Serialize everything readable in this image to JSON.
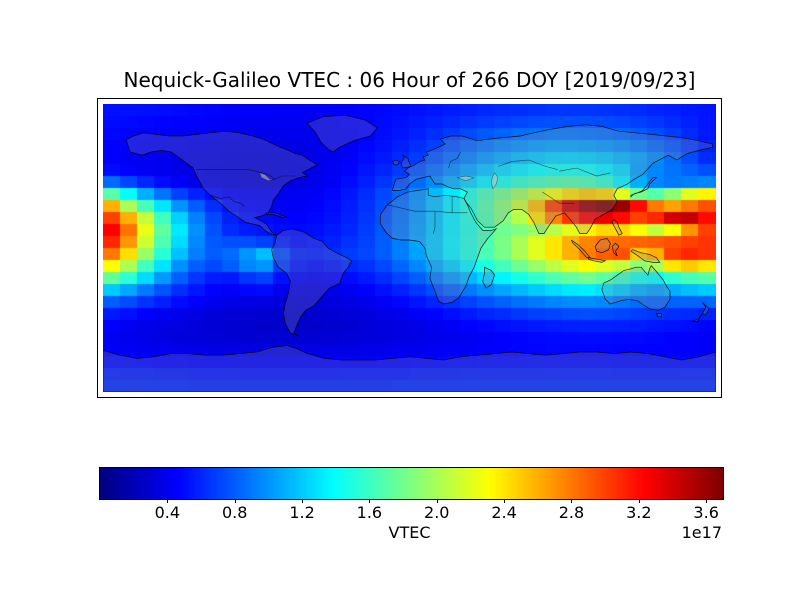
{
  "figure": {
    "background_color": "#ffffff",
    "title": "Nequick-Galileo VTEC : 06 Hour of 266 DOY [2019/09/23]"
  },
  "chart_data": {
    "type": "heatmap",
    "title": "Nequick-Galileo VTEC : 06 Hour of 266 DOY [2019/09/23]",
    "description_visible": "Global world map (equirectangular) of modeled vertical total electron content with coastlines and country borders overlaid",
    "colormap": "jet",
    "vmin": 0.0,
    "vmax": 3.7,
    "colorbar": {
      "orientation": "horizontal",
      "label": "VTEC",
      "offset_text": "1e17",
      "tick_labels": [
        "0.4",
        "0.8",
        "1.2",
        "1.6",
        "2.0",
        "2.4",
        "2.8",
        "3.2",
        "3.6"
      ],
      "tick_values": [
        0.4,
        0.8,
        1.2,
        1.6,
        2.0,
        2.4,
        2.8,
        3.2,
        3.6
      ]
    },
    "x_axis": {
      "name": "longitude",
      "range": [
        -180,
        180
      ],
      "cell_step_deg": 10,
      "ticks_visible": false
    },
    "y_axis": {
      "name": "latitude",
      "range": [
        90,
        -90
      ],
      "cell_step_deg": 7.5,
      "ticks_visible": false
    },
    "grid_units": "1e17 electrons/m^2",
    "grid_lat_centers_north_to_south": [
      86.25,
      78.75,
      71.25,
      63.75,
      56.25,
      48.75,
      41.25,
      33.75,
      26.25,
      18.75,
      11.25,
      3.75,
      -3.75,
      -11.25,
      -18.75,
      -26.25,
      -33.75,
      -41.25,
      -48.75,
      -56.25,
      -63.75,
      -71.25,
      -78.75,
      -86.25
    ],
    "grid_rows_north_to_south": [
      [
        0.52,
        0.52,
        0.51,
        0.5,
        0.49,
        0.48,
        0.47,
        0.46,
        0.45,
        0.45,
        0.44,
        0.44,
        0.44,
        0.45,
        0.46,
        0.47,
        0.48,
        0.5,
        0.52,
        0.54,
        0.56,
        0.58,
        0.6,
        0.62,
        0.63,
        0.64,
        0.65,
        0.65,
        0.65,
        0.64,
        0.63,
        0.61,
        0.59,
        0.57,
        0.55,
        0.53
      ],
      [
        0.5,
        0.49,
        0.48,
        0.47,
        0.46,
        0.45,
        0.44,
        0.43,
        0.42,
        0.42,
        0.42,
        0.42,
        0.43,
        0.44,
        0.45,
        0.47,
        0.49,
        0.52,
        0.55,
        0.58,
        0.61,
        0.64,
        0.67,
        0.7,
        0.72,
        0.74,
        0.75,
        0.75,
        0.75,
        0.74,
        0.72,
        0.69,
        0.66,
        0.62,
        0.58,
        0.54
      ],
      [
        0.48,
        0.47,
        0.46,
        0.44,
        0.43,
        0.42,
        0.41,
        0.4,
        0.39,
        0.39,
        0.39,
        0.4,
        0.41,
        0.42,
        0.44,
        0.47,
        0.5,
        0.54,
        0.58,
        0.63,
        0.68,
        0.73,
        0.78,
        0.82,
        0.86,
        0.88,
        0.9,
        0.9,
        0.89,
        0.87,
        0.84,
        0.8,
        0.75,
        0.69,
        0.62,
        0.55
      ],
      [
        0.46,
        0.45,
        0.44,
        0.42,
        0.4,
        0.39,
        0.38,
        0.37,
        0.36,
        0.36,
        0.36,
        0.37,
        0.39,
        0.41,
        0.44,
        0.48,
        0.52,
        0.57,
        0.63,
        0.7,
        0.77,
        0.84,
        0.9,
        0.96,
        1.0,
        1.04,
        1.06,
        1.06,
        1.05,
        1.02,
        0.98,
        0.92,
        0.85,
        0.77,
        0.68,
        0.58
      ],
      [
        0.45,
        0.44,
        0.42,
        0.4,
        0.38,
        0.37,
        0.36,
        0.35,
        0.34,
        0.34,
        0.34,
        0.36,
        0.38,
        0.41,
        0.45,
        0.5,
        0.55,
        0.61,
        0.68,
        0.77,
        0.86,
        0.94,
        1.02,
        1.09,
        1.15,
        1.2,
        1.23,
        1.24,
        1.22,
        1.19,
        1.13,
        1.06,
        0.97,
        0.86,
        0.74,
        0.62
      ],
      [
        0.5,
        0.46,
        0.43,
        0.4,
        0.38,
        0.36,
        0.35,
        0.34,
        0.33,
        0.33,
        0.34,
        0.35,
        0.38,
        0.42,
        0.47,
        0.53,
        0.59,
        0.67,
        0.76,
        0.86,
        0.97,
        1.07,
        1.17,
        1.26,
        1.33,
        1.39,
        1.43,
        1.44,
        1.42,
        1.35,
        1.25,
        1.05,
        0.95,
        0.88,
        0.82,
        0.75
      ],
      [
        0.85,
        0.72,
        0.6,
        0.5,
        0.43,
        0.38,
        0.36,
        0.34,
        0.33,
        0.33,
        0.34,
        0.36,
        0.39,
        0.44,
        0.5,
        0.57,
        0.65,
        0.74,
        0.85,
        0.97,
        1.1,
        1.22,
        1.34,
        1.45,
        1.55,
        1.62,
        1.67,
        1.69,
        1.65,
        1.55,
        1.35,
        1.1,
        0.95,
        0.9,
        0.92,
        0.95
      ],
      [
        1.7,
        1.4,
        1.1,
        0.88,
        0.7,
        0.58,
        0.5,
        0.45,
        0.44,
        0.43,
        0.42,
        0.42,
        0.44,
        0.48,
        0.54,
        0.62,
        0.72,
        0.84,
        0.98,
        1.14,
        1.31,
        1.48,
        1.64,
        1.8,
        1.96,
        2.12,
        2.28,
        2.42,
        2.5,
        2.45,
        2.2,
        1.8,
        1.7,
        1.9,
        2.2,
        2.35
      ],
      [
        2.6,
        2.0,
        1.65,
        1.3,
        1.0,
        0.8,
        0.63,
        0.52,
        0.47,
        0.45,
        0.44,
        0.44,
        0.46,
        0.5,
        0.56,
        0.64,
        0.74,
        0.86,
        1.0,
        1.16,
        1.33,
        1.5,
        1.68,
        1.88,
        2.1,
        2.55,
        3.0,
        3.4,
        3.62,
        3.7,
        3.6,
        3.2,
        2.8,
        2.65,
        2.8,
        2.95
      ],
      [
        3.0,
        2.6,
        2.1,
        1.62,
        1.22,
        0.93,
        0.72,
        0.58,
        0.52,
        0.49,
        0.47,
        0.46,
        0.48,
        0.52,
        0.58,
        0.66,
        0.76,
        0.88,
        1.02,
        1.17,
        1.33,
        1.5,
        1.67,
        1.85,
        2.05,
        2.4,
        2.75,
        3.05,
        3.25,
        3.3,
        3.2,
        3.0,
        3.1,
        3.4,
        3.45,
        3.2
      ],
      [
        3.25,
        2.82,
        2.24,
        1.74,
        1.31,
        0.99,
        0.76,
        0.62,
        0.56,
        0.53,
        0.5,
        0.49,
        0.51,
        0.55,
        0.6,
        0.68,
        0.78,
        0.9,
        1.04,
        1.18,
        1.33,
        1.48,
        1.64,
        1.78,
        1.85,
        1.95,
        2.05,
        2.2,
        2.35,
        2.45,
        2.45,
        2.3,
        2.1,
        2.3,
        2.7,
        3.0
      ],
      [
        3.1,
        2.69,
        2.14,
        1.67,
        1.26,
        0.96,
        0.78,
        0.75,
        0.75,
        0.7,
        0.58,
        0.52,
        0.54,
        0.58,
        0.64,
        0.7,
        0.8,
        0.92,
        1.06,
        1.2,
        1.35,
        1.5,
        1.66,
        1.83,
        2.0,
        2.2,
        2.4,
        2.6,
        2.75,
        2.82,
        2.85,
        2.88,
        2.9,
        2.95,
        3.0,
        3.05
      ],
      [
        2.8,
        2.43,
        1.94,
        1.53,
        1.16,
        0.92,
        0.8,
        0.85,
        1.0,
        1.15,
        0.75,
        0.6,
        0.58,
        0.62,
        0.68,
        0.72,
        0.8,
        0.92,
        1.05,
        1.19,
        1.34,
        1.49,
        1.65,
        1.82,
        2.0,
        2.2,
        2.4,
        2.6,
        2.78,
        2.9,
        2.95,
        2.5,
        2.6,
        3.0,
        3.1,
        3.05
      ],
      [
        2.3,
        2.01,
        1.62,
        1.29,
        0.99,
        0.8,
        0.72,
        0.8,
        0.95,
        1.0,
        0.68,
        0.55,
        0.52,
        0.55,
        0.6,
        0.64,
        0.72,
        0.83,
        0.95,
        1.08,
        1.21,
        1.35,
        1.49,
        1.63,
        1.78,
        1.93,
        2.07,
        2.2,
        2.3,
        2.2,
        2.1,
        1.9,
        2.0,
        2.4,
        2.5,
        2.4
      ],
      [
        1.75,
        1.54,
        1.26,
        1.02,
        0.81,
        0.66,
        0.56,
        0.55,
        0.65,
        0.7,
        0.52,
        0.45,
        0.44,
        0.46,
        0.5,
        0.55,
        0.62,
        0.71,
        0.81,
        0.91,
        1.02,
        1.13,
        1.24,
        1.35,
        1.46,
        1.56,
        1.66,
        1.74,
        1.8,
        1.72,
        1.6,
        1.45,
        1.4,
        1.55,
        1.65,
        1.7
      ],
      [
        1.2,
        1.07,
        0.9,
        0.76,
        0.63,
        0.54,
        0.47,
        0.44,
        0.48,
        0.5,
        0.4,
        0.36,
        0.36,
        0.38,
        0.42,
        0.46,
        0.52,
        0.58,
        0.66,
        0.74,
        0.82,
        0.9,
        0.98,
        1.06,
        1.13,
        1.2,
        1.26,
        1.31,
        1.33,
        1.28,
        1.2,
        1.1,
        1.05,
        1.1,
        1.15,
        1.2
      ],
      [
        0.8,
        0.73,
        0.64,
        0.57,
        0.5,
        0.45,
        0.41,
        0.38,
        0.37,
        0.36,
        0.33,
        0.31,
        0.32,
        0.34,
        0.36,
        0.39,
        0.43,
        0.48,
        0.53,
        0.59,
        0.64,
        0.7,
        0.76,
        0.81,
        0.86,
        0.9,
        0.94,
        0.97,
        0.98,
        0.95,
        0.9,
        0.85,
        0.82,
        0.82,
        0.82,
        0.82
      ],
      [
        0.55,
        0.51,
        0.46,
        0.42,
        0.39,
        0.36,
        0.33,
        0.31,
        0.3,
        0.29,
        0.28,
        0.28,
        0.29,
        0.3,
        0.32,
        0.34,
        0.37,
        0.4,
        0.44,
        0.47,
        0.51,
        0.55,
        0.59,
        0.62,
        0.66,
        0.69,
        0.71,
        0.73,
        0.74,
        0.73,
        0.71,
        0.68,
        0.65,
        0.63,
        0.61,
        0.58
      ],
      [
        0.45,
        0.42,
        0.39,
        0.37,
        0.35,
        0.33,
        0.31,
        0.3,
        0.29,
        0.28,
        0.28,
        0.28,
        0.28,
        0.29,
        0.3,
        0.32,
        0.34,
        0.36,
        0.38,
        0.41,
        0.43,
        0.46,
        0.48,
        0.51,
        0.53,
        0.55,
        0.56,
        0.57,
        0.58,
        0.58,
        0.57,
        0.56,
        0.54,
        0.52,
        0.5,
        0.47
      ],
      [
        0.42,
        0.4,
        0.38,
        0.36,
        0.34,
        0.33,
        0.32,
        0.31,
        0.3,
        0.3,
        0.3,
        0.3,
        0.3,
        0.31,
        0.32,
        0.33,
        0.34,
        0.36,
        0.37,
        0.39,
        0.41,
        0.42,
        0.44,
        0.45,
        0.47,
        0.48,
        0.49,
        0.49,
        0.5,
        0.5,
        0.49,
        0.49,
        0.48,
        0.46,
        0.45,
        0.43
      ],
      [
        0.44,
        0.43,
        0.41,
        0.4,
        0.39,
        0.38,
        0.37,
        0.36,
        0.36,
        0.36,
        0.36,
        0.36,
        0.36,
        0.37,
        0.37,
        0.38,
        0.39,
        0.4,
        0.41,
        0.42,
        0.43,
        0.44,
        0.45,
        0.46,
        0.47,
        0.47,
        0.48,
        0.48,
        0.48,
        0.48,
        0.47,
        0.47,
        0.46,
        0.45,
        0.45,
        0.44
      ],
      [
        0.5,
        0.49,
        0.48,
        0.47,
        0.47,
        0.46,
        0.46,
        0.45,
        0.45,
        0.45,
        0.45,
        0.45,
        0.45,
        0.46,
        0.46,
        0.46,
        0.47,
        0.47,
        0.48,
        0.48,
        0.49,
        0.49,
        0.5,
        0.5,
        0.5,
        0.51,
        0.51,
        0.51,
        0.51,
        0.51,
        0.5,
        0.5,
        0.5,
        0.5,
        0.5,
        0.5
      ],
      [
        0.58,
        0.57,
        0.57,
        0.56,
        0.56,
        0.55,
        0.55,
        0.55,
        0.54,
        0.54,
        0.54,
        0.54,
        0.54,
        0.54,
        0.55,
        0.55,
        0.55,
        0.55,
        0.56,
        0.56,
        0.56,
        0.57,
        0.57,
        0.57,
        0.57,
        0.57,
        0.58,
        0.58,
        0.58,
        0.58,
        0.57,
        0.57,
        0.57,
        0.57,
        0.58,
        0.58
      ],
      [
        0.62,
        0.62,
        0.61,
        0.61,
        0.61,
        0.6,
        0.6,
        0.6,
        0.6,
        0.6,
        0.6,
        0.6,
        0.6,
        0.6,
        0.6,
        0.6,
        0.6,
        0.61,
        0.61,
        0.61,
        0.61,
        0.61,
        0.62,
        0.62,
        0.62,
        0.62,
        0.62,
        0.62,
        0.62,
        0.62,
        0.62,
        0.62,
        0.62,
        0.62,
        0.62,
        0.62
      ]
    ]
  }
}
